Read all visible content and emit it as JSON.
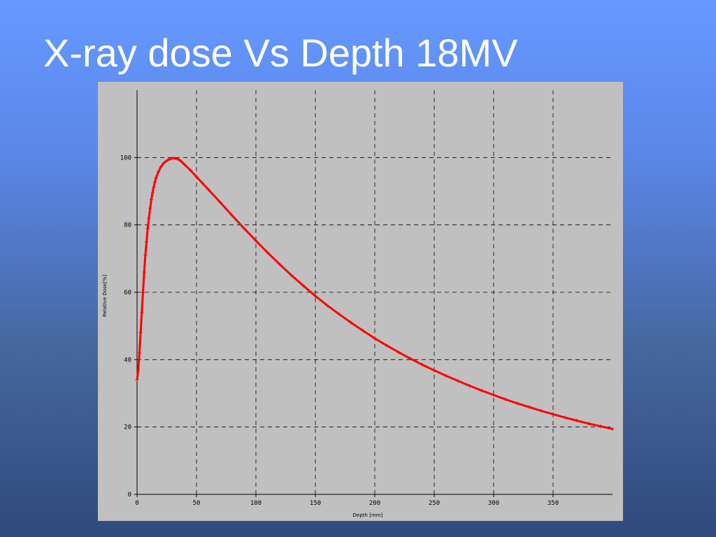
{
  "slide": {
    "title": "X-ray dose Vs Depth 18MV"
  },
  "chart_data": {
    "type": "line",
    "title": "",
    "xlabel": "Depth [mm]",
    "ylabel": "Relative Dose[%]",
    "xlim": [
      0,
      400
    ],
    "ylim": [
      0,
      120
    ],
    "xticks": [
      0,
      50,
      100,
      150,
      200,
      250,
      300,
      350
    ],
    "yticks": [
      0,
      20,
      40,
      60,
      80,
      100
    ],
    "grid": true,
    "grid_style": "dashed",
    "series": [
      {
        "color": "#ff0000",
        "marker": "plus",
        "x": [
          0,
          1,
          2,
          3,
          4,
          5,
          6,
          7,
          8,
          9,
          10,
          11,
          12,
          13,
          14,
          15,
          16,
          18,
          20,
          22,
          24,
          26,
          28,
          30,
          32,
          34,
          36,
          38,
          40,
          45,
          50,
          55,
          60,
          70,
          80,
          90,
          100,
          110,
          120,
          130,
          140,
          150,
          160,
          170,
          180,
          190,
          200,
          210,
          220,
          230,
          240,
          250,
          260,
          270,
          280,
          290,
          300,
          310,
          320,
          330,
          340,
          350,
          360,
          370,
          380,
          390,
          400
        ],
        "values": [
          34,
          37,
          42,
          48,
          54,
          60,
          66,
          71,
          75,
          79,
          82,
          85,
          87.5,
          89.5,
          91.2,
          92.7,
          94,
          95.8,
          97.2,
          98.2,
          98.8,
          99.3,
          99.6,
          99.8,
          99.8,
          99.6,
          99.2,
          98.6,
          97.9,
          96.2,
          94.3,
          92.4,
          90.5,
          86.7,
          82.8,
          79,
          75.3,
          71.7,
          68.3,
          65,
          61.9,
          58.9,
          56.1,
          53.5,
          51,
          48.6,
          46.3,
          44.2,
          42.2,
          40.3,
          38.5,
          36.8,
          35.2,
          33.7,
          32.2,
          30.8,
          29.5,
          28.2,
          27,
          25.9,
          24.8,
          23.8,
          22.8,
          21.9,
          21,
          20.2,
          19.4
        ]
      }
    ]
  }
}
